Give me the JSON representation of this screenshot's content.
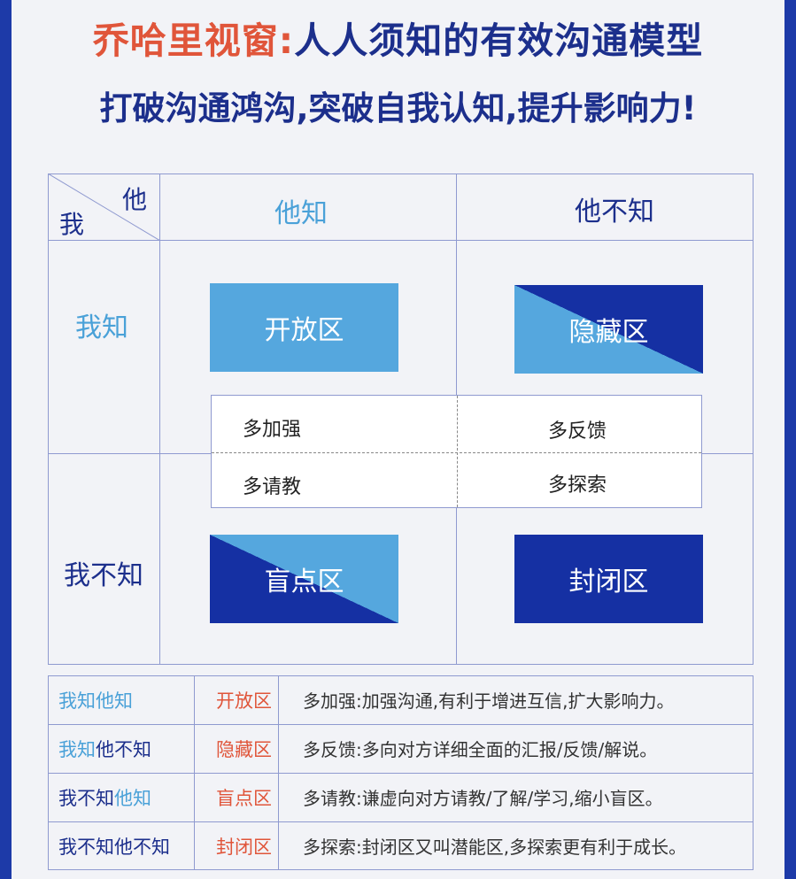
{
  "title": {
    "highlight": "乔哈里视窗:",
    "rest": "人人须知的有效沟通模型",
    "subtitle": "打破沟通鸿沟,突破自我认知,提升影响力!"
  },
  "matrix": {
    "corner_top": "他",
    "corner_bottom": "我",
    "col_known": "他知",
    "col_unknown": "他不知",
    "row_known": "我知",
    "row_unknown": "我不知",
    "zones": {
      "open": "开放区",
      "hidden": "隐藏区",
      "blind": "盲点区",
      "closed": "封闭区"
    },
    "tips": {
      "strengthen": "多加强",
      "feedback": "多反馈",
      "consult": "多请教",
      "explore": "多探索"
    }
  },
  "legend": [
    {
      "me": "我知",
      "other": "他知",
      "zone": "开放区",
      "desc": "多加强:加强沟通,有利于增进互信,扩大影响力。"
    },
    {
      "me": "我知",
      "other": "他不知",
      "zone": "隐藏区",
      "desc": "多反馈:多向对方详细全面的汇报/反馈/解说。"
    },
    {
      "me": "我不知",
      "other": "他知",
      "zone": "盲点区",
      "desc": "多请教:谦虚向对方请教/了解/学习,缩小盲区。"
    },
    {
      "me": "我不知",
      "other": "他不知",
      "zone": "封闭区",
      "desc": "多探索:封闭区又叫潜能区,多探索更有利于成长。"
    }
  ],
  "colors": {
    "frame_blue": "#1d3aa8",
    "light_blue": "#55a7de",
    "dark_blue": "#1530a3",
    "title_red": "#e0553a",
    "title_navy": "#1c2f8c",
    "known_text": "#4aa1d8"
  }
}
